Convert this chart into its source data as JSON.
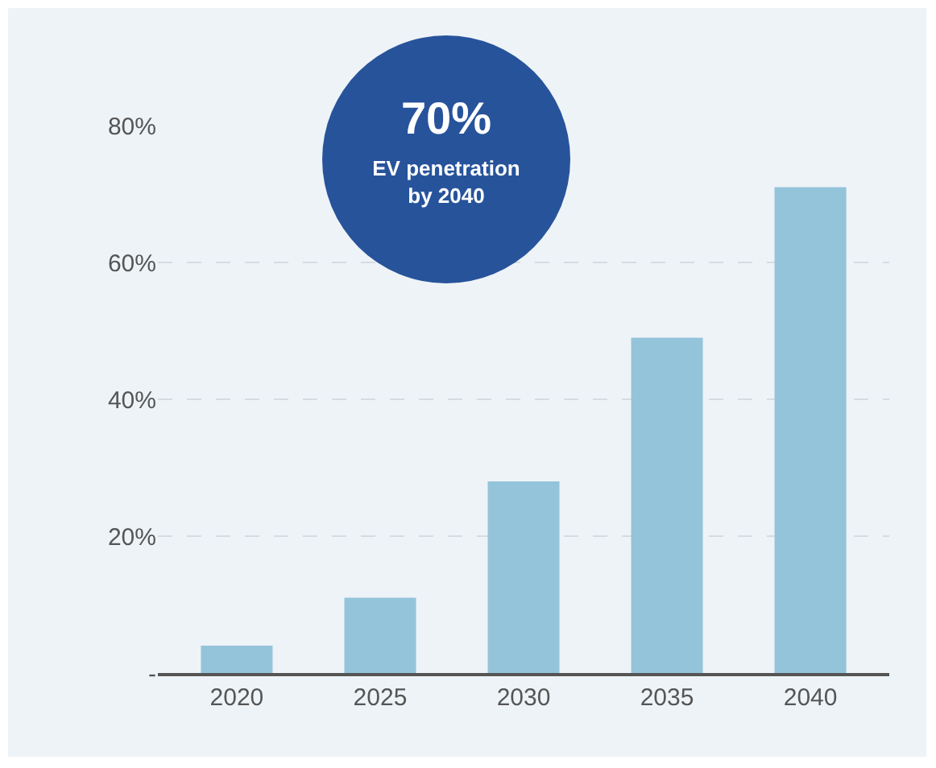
{
  "chart_data": {
    "type": "bar",
    "categories": [
      "2020",
      "2025",
      "2030",
      "2035",
      "2040"
    ],
    "values": [
      4,
      11,
      28,
      49,
      71
    ],
    "color": "#93c4da",
    "ylim": [
      0,
      80
    ],
    "yticks": [
      {
        "value": 0,
        "label": "-"
      },
      {
        "value": 20,
        "label": "20%"
      },
      {
        "value": 40,
        "label": "40%"
      },
      {
        "value": 60,
        "label": "60%"
      },
      {
        "value": 80,
        "label": "80%"
      }
    ],
    "grid": "y",
    "annotations": [
      "70%",
      "EV penetration by 2040"
    ]
  }
}
